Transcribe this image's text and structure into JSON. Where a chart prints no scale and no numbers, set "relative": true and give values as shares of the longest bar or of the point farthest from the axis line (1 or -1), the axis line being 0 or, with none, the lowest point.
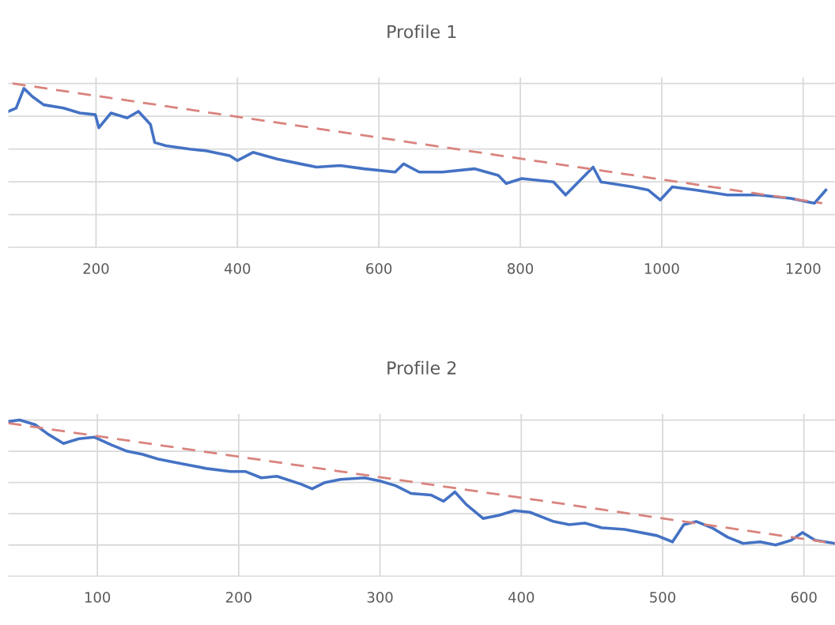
{
  "chart_data": [
    {
      "type": "line",
      "title": "Profile 1",
      "relative": true,
      "xlim": [
        76,
        1245
      ],
      "xticks": [
        200,
        400,
        600,
        800,
        1000,
        1200
      ],
      "tick_labels": "x",
      "grid": true,
      "legend": false,
      "series": [
        {
          "color": "#4472c4",
          "line_style": "solid",
          "x": [
            76,
            87,
            98,
            110,
            126,
            154,
            177,
            199,
            204,
            221,
            244,
            260,
            277,
            283,
            299,
            333,
            355,
            389,
            400,
            422,
            456,
            489,
            512,
            545,
            579,
            623,
            635,
            657,
            690,
            735,
            769,
            780,
            802,
            847,
            864,
            880,
            903,
            914,
            959,
            981,
            998,
            1015,
            1048,
            1093,
            1137,
            1182,
            1216,
            1232
          ],
          "values": [
            0.83,
            0.85,
            0.97,
            0.92,
            0.87,
            0.85,
            0.82,
            0.81,
            0.73,
            0.82,
            0.79,
            0.83,
            0.75,
            0.64,
            0.62,
            0.6,
            0.59,
            0.56,
            0.53,
            0.58,
            0.54,
            0.51,
            0.49,
            0.5,
            0.48,
            0.46,
            0.51,
            0.46,
            0.46,
            0.48,
            0.44,
            0.39,
            0.42,
            0.4,
            0.32,
            0.39,
            0.49,
            0.4,
            0.37,
            0.35,
            0.29,
            0.37,
            0.35,
            0.32,
            0.32,
            0.3,
            0.27,
            0.35
          ]
        },
        {
          "color": "#d9837d",
          "line_style": "dashed",
          "x": [
            82,
            1227
          ],
          "values": [
            1.0,
            0.27
          ]
        }
      ]
    },
    {
      "type": "line",
      "title": "Profile 2",
      "relative": true,
      "xlim": [
        37,
        622
      ],
      "xticks": [
        100,
        200,
        300,
        400,
        500,
        600
      ],
      "tick_labels": "x",
      "grid": true,
      "legend": false,
      "series": [
        {
          "color": "#4472c4",
          "line_style": "solid",
          "x": [
            37,
            45,
            56,
            65,
            76,
            87,
            98,
            110,
            121,
            132,
            143,
            160,
            177,
            194,
            205,
            216,
            227,
            244,
            252,
            261,
            272,
            289,
            300,
            311,
            322,
            336,
            345,
            353,
            361,
            373,
            384,
            395,
            406,
            423,
            434,
            445,
            457,
            473,
            496,
            507,
            515,
            524,
            535,
            546,
            557,
            569,
            580,
            591,
            599,
            608,
            622
          ],
          "values": [
            0.99,
            1.0,
            0.97,
            0.91,
            0.85,
            0.88,
            0.89,
            0.84,
            0.8,
            0.78,
            0.75,
            0.72,
            0.69,
            0.67,
            0.67,
            0.63,
            0.64,
            0.59,
            0.56,
            0.6,
            0.62,
            0.63,
            0.61,
            0.58,
            0.53,
            0.52,
            0.48,
            0.54,
            0.46,
            0.37,
            0.39,
            0.42,
            0.41,
            0.35,
            0.33,
            0.34,
            0.31,
            0.3,
            0.26,
            0.22,
            0.33,
            0.35,
            0.31,
            0.25,
            0.21,
            0.22,
            0.2,
            0.23,
            0.28,
            0.23,
            0.21
          ]
        },
        {
          "color": "#d9837d",
          "line_style": "dashed",
          "x": [
            37,
            622
          ],
          "values": [
            0.98,
            0.21
          ]
        }
      ]
    }
  ]
}
